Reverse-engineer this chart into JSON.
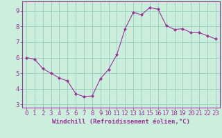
{
  "x": [
    0,
    1,
    2,
    3,
    4,
    5,
    6,
    7,
    8,
    9,
    10,
    11,
    12,
    13,
    14,
    15,
    16,
    17,
    18,
    19,
    20,
    21,
    22,
    23
  ],
  "y": [
    6.0,
    5.9,
    5.3,
    5.0,
    4.7,
    4.5,
    3.7,
    3.5,
    3.55,
    4.65,
    5.25,
    6.2,
    7.85,
    8.9,
    8.75,
    9.2,
    9.1,
    8.05,
    7.8,
    7.85,
    7.6,
    7.6,
    7.4,
    7.2
  ],
  "line_color": "#993399",
  "marker_color": "#993399",
  "bg_color": "#cceedd",
  "grid_color": "#99ccbb",
  "xlabel": "Windchill (Refroidissement éolien,°C)",
  "xlim": [
    -0.5,
    23.5
  ],
  "ylim": [
    2.8,
    9.6
  ],
  "yticks": [
    3,
    4,
    5,
    6,
    7,
    8,
    9
  ],
  "xticks": [
    0,
    1,
    2,
    3,
    4,
    5,
    6,
    7,
    8,
    9,
    10,
    11,
    12,
    13,
    14,
    15,
    16,
    17,
    18,
    19,
    20,
    21,
    22,
    23
  ],
  "figsize": [
    3.2,
    2.0
  ],
  "dpi": 100,
  "xlabel_fontsize": 6.5,
  "tick_fontsize": 6.5,
  "label_color": "#993399"
}
